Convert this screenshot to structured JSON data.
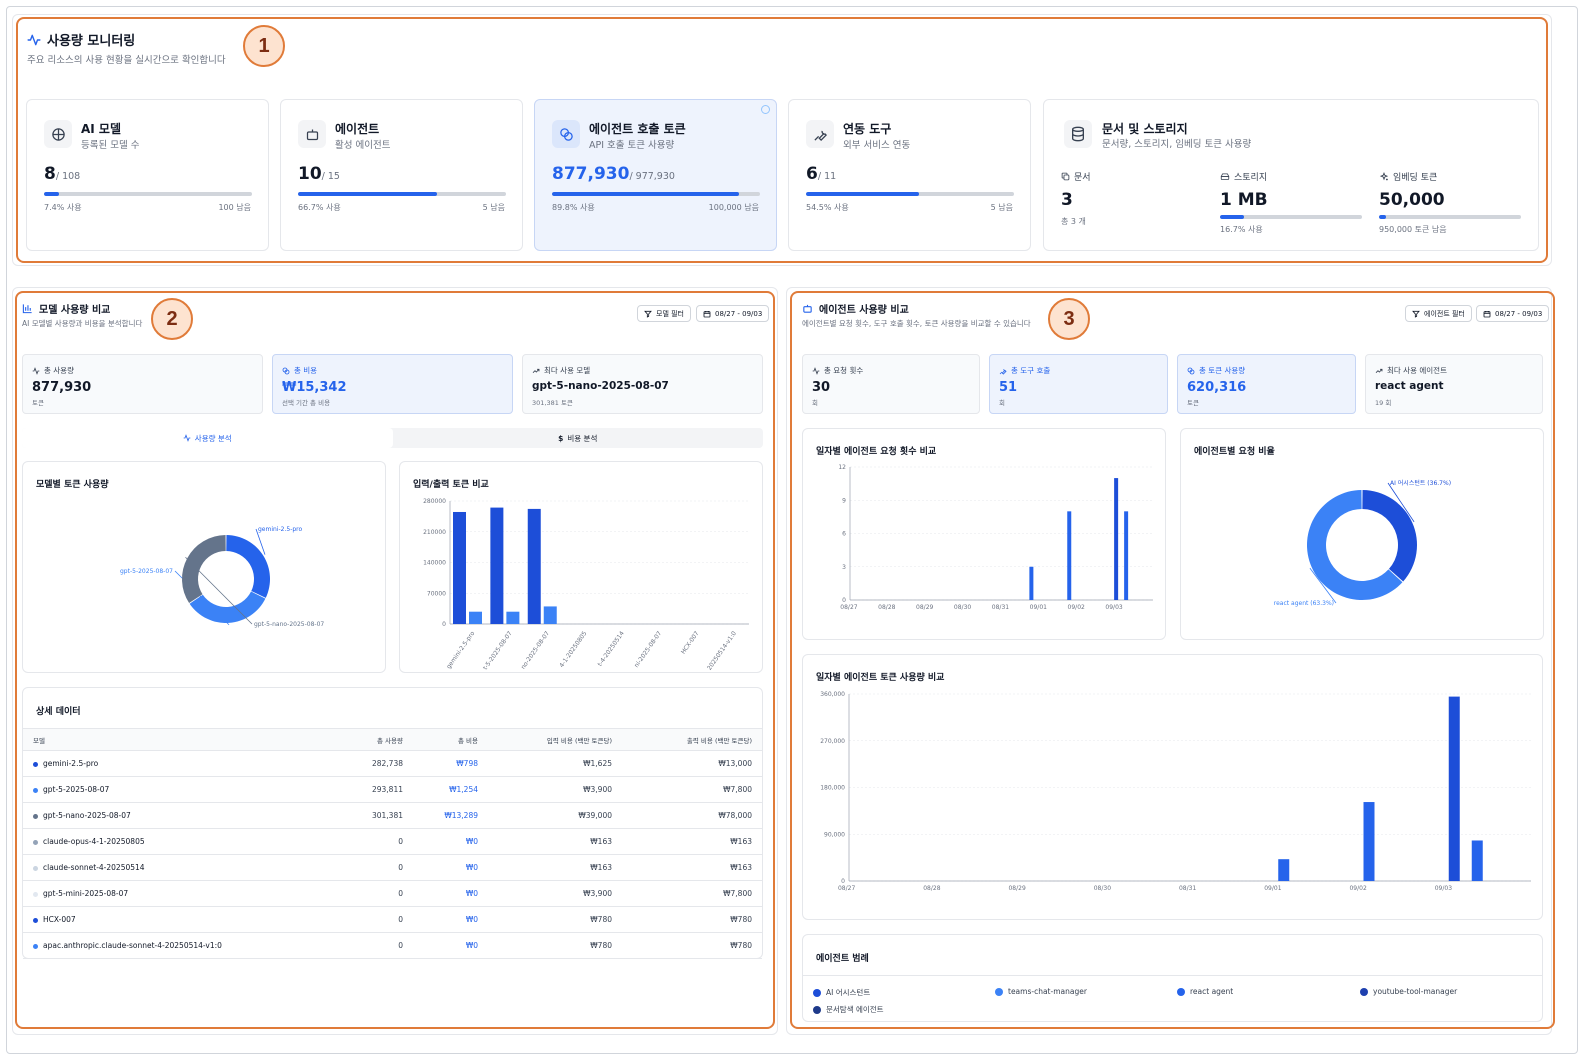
{
  "colors": {
    "primary": "#2563eb",
    "highlight": "#e07b39",
    "gray": "#64748b"
  },
  "markers": [
    "1",
    "2",
    "3"
  ],
  "monitor": {
    "title": "사용량 모니터링",
    "subtitle": "주요 리소스의 사용 현황을 실시간으로 확인합니다",
    "cards": [
      {
        "title": "AI 모델",
        "sub": "등록된 모델 수",
        "value": "8",
        "total": "/ 108",
        "used": "7.4% 사용",
        "remain": "100 남음",
        "progress": 0.074,
        "icon": "brain-icon"
      },
      {
        "title": "에이전트",
        "sub": "활성 에이전트",
        "value": "10",
        "total": "/ 15",
        "used": "66.7% 사용",
        "remain": "5 남음",
        "progress": 0.667,
        "icon": "bot-icon"
      },
      {
        "title": "에이전트 호출 토큰",
        "sub": "API 호출 토큰 사용량",
        "value": "877,930",
        "total": "/ 977,930",
        "used": "89.8% 사용",
        "remain": "100,000 남음",
        "progress": 0.898,
        "icon": "coins-icon"
      },
      {
        "title": "연동 도구",
        "sub": "외부 서비스 연동",
        "value": "6",
        "total": "/ 11",
        "used": "54.5% 사용",
        "remain": "5 남음",
        "progress": 0.545,
        "icon": "wrench-icon"
      }
    ],
    "storage": {
      "title": "문서 및 스토리지",
      "sub": "문서량, 스토리지, 임베딩 토큰 사용량",
      "docs_label": "문서",
      "docs_value": "3",
      "docs_sub": "총 3 개",
      "storage_label": "스토리지",
      "storage_value": "1 MB",
      "storage_used": "16.7% 사용",
      "storage_progress": 0.167,
      "embed_label": "임베딩 토큰",
      "embed_value": "50,000",
      "embed_remain": "950,000 토큰 남음",
      "embed_progress": 0.05
    }
  },
  "model_panel": {
    "title": "모델 사용량 비교",
    "subtitle": "AI 모델별 사용량과 비용을 분석합니다",
    "filter_label": "모델 필터",
    "date_label": "08/27 - 09/03",
    "stats": [
      {
        "label": "총 사용량",
        "value": "877,930",
        "sub": "토큰"
      },
      {
        "label": "총 비용",
        "value": "₩15,342",
        "sub": "선택 기간 총 비용"
      },
      {
        "label": "최다 사용 모델",
        "value": "gpt-5-nano-2025-08-07",
        "sub": "301,381 토큰"
      }
    ],
    "tabs": [
      "사용량 분석",
      "비용 분석"
    ],
    "donut_title": "모델별 토큰 사용량",
    "bar_title": "입력/출력 토큰 비교",
    "table_title": "상세 데이터",
    "columns": [
      "모델",
      "총 사용량",
      "총 비용",
      "입력 비용 (백만 토큰당)",
      "출력 비용 (백만 토큰당)"
    ],
    "rows": [
      {
        "name": "gemini-2.5-pro",
        "usage": "282,738",
        "cost": "₩798",
        "input": "₩1,625",
        "output": "₩13,000",
        "color": "#1d4ed8"
      },
      {
        "name": "gpt-5-2025-08-07",
        "usage": "293,811",
        "cost": "₩1,254",
        "input": "₩3,900",
        "output": "₩7,800",
        "color": "#3b82f6"
      },
      {
        "name": "gpt-5-nano-2025-08-07",
        "usage": "301,381",
        "cost": "₩13,289",
        "input": "₩39,000",
        "output": "₩78,000",
        "color": "#64748b"
      },
      {
        "name": "claude-opus-4-1-20250805",
        "usage": "0",
        "cost": "₩0",
        "input": "₩163",
        "output": "₩163",
        "color": "#94a3b8"
      },
      {
        "name": "claude-sonnet-4-20250514",
        "usage": "0",
        "cost": "₩0",
        "input": "₩163",
        "output": "₩163",
        "color": "#cbd5e1"
      },
      {
        "name": "gpt-5-mini-2025-08-07",
        "usage": "0",
        "cost": "₩0",
        "input": "₩3,900",
        "output": "₩7,800",
        "color": "#e2e8f0"
      },
      {
        "name": "HCX-007",
        "usage": "0",
        "cost": "₩0",
        "input": "₩780",
        "output": "₩780",
        "color": "#1d4ed8"
      },
      {
        "name": "apac.anthropic.claude-sonnet-4-20250514-v1:0",
        "usage": "0",
        "cost": "₩0",
        "input": "₩780",
        "output": "₩780",
        "color": "#3b82f6"
      }
    ]
  },
  "agent_panel": {
    "title": "에이전트 사용량 비교",
    "subtitle": "에이전트별 요청 횟수, 도구 호출 횟수, 토큰 사용량을 비교할 수 있습니다",
    "filter_label": "에이전트 필터",
    "date_label": "08/27 - 09/03",
    "stats": [
      {
        "label": "총 요청 횟수",
        "value": "30",
        "sub": "회"
      },
      {
        "label": "총 도구 호출",
        "value": "51",
        "sub": "회"
      },
      {
        "label": "총 토큰 사용량",
        "value": "620,316",
        "sub": "토큰"
      },
      {
        "label": "최다 사용 에이전트",
        "value": "react agent",
        "sub": "19 회"
      }
    ],
    "req_title": "일자별 에이전트 요청 횟수 비교",
    "ratio_title": "에이전트별 요청 비율",
    "token_title": "일자별 에이전트 토큰 사용량 비교",
    "legend_title": "에이전트 범례",
    "legend": [
      {
        "name": "AI 어시스턴트",
        "color": "#1d4ed8"
      },
      {
        "name": "teams-chat-manager",
        "color": "#3b82f6"
      },
      {
        "name": "react agent",
        "color": "#2563eb"
      },
      {
        "name": "youtube-tool-manager",
        "color": "#1e40af"
      },
      {
        "name": "문서탐색 에이전트",
        "color": "#1e3a8a"
      }
    ]
  },
  "chart_data": [
    {
      "type": "pie",
      "title": "모델별 토큰 사용량",
      "categories": [
        "gemini-2.5-pro",
        "gpt-5-2025-08-07",
        "gpt-5-nano-2025-08-07"
      ],
      "values": [
        282738,
        293811,
        301381
      ],
      "colors": [
        "#2563eb",
        "#3b82f6",
        "#64748b"
      ]
    },
    {
      "type": "bar",
      "title": "입력/출력 토큰 비교",
      "categories": [
        "gemini-2.5-pro",
        "gpt-5-2025-08-07",
        "gpt-5-nano-2025-08-07",
        "claude-opus-4-1-20250805",
        "claude-sonnet-4-20250514",
        "gpt-5-mini-2025-08-07",
        "HCX-007",
        "apac.anthropic.claude-sonnet-4-20250514-v1:0"
      ],
      "tick_labels": [
        "gemini-2.5-pro",
        "t-5-2025-08-07",
        "no-2025-08-07",
        "4-1-20250805",
        "t-4-20250514",
        "ni-2025-08-07",
        "HCX-007",
        "20250514-v1:0"
      ],
      "series": [
        {
          "values": [
            255000,
            265000,
            262000,
            0,
            0,
            0,
            0,
            0
          ],
          "color": "#1d4ed8"
        },
        {
          "values": [
            28000,
            28000,
            40000,
            0,
            0,
            0,
            0,
            0
          ],
          "color": "#3b82f6"
        }
      ],
      "yticks": [
        0,
        70000,
        140000,
        210000,
        280000
      ],
      "ylim": [
        0,
        280000
      ]
    },
    {
      "type": "bar",
      "title": "일자별 에이전트 요청 횟수 비교",
      "categories": [
        "08/27",
        "08/28",
        "08/29",
        "08/30",
        "08/31",
        "09/01",
        "09/02",
        "09/03"
      ],
      "series": [
        {
          "name": "AI 어시스턴트",
          "values": [
            0,
            0,
            0,
            0,
            0,
            0,
            0,
            11
          ]
        },
        {
          "name": "react agent",
          "values": [
            0,
            0,
            0,
            0,
            0,
            3,
            8,
            8
          ]
        }
      ],
      "yticks": [
        0,
        3,
        6,
        9,
        12
      ],
      "ylim": [
        0,
        12
      ]
    },
    {
      "type": "pie",
      "title": "에이전트별 요청 비율",
      "categories": [
        "AI 어시스턴트 (36.7%)",
        "react agent (63.3%)"
      ],
      "values": [
        36.7,
        63.3
      ],
      "colors": [
        "#1d4ed8",
        "#3b82f6"
      ]
    },
    {
      "type": "bar",
      "title": "일자별 에이전트 토큰 사용량 비교",
      "categories": [
        "08/27",
        "08/28",
        "08/29",
        "08/30",
        "08/31",
        "09/01",
        "09/02",
        "09/03"
      ],
      "series": [
        {
          "name": "AI 어시스턴트",
          "values": [
            0,
            0,
            0,
            0,
            0,
            0,
            0,
            355000
          ]
        },
        {
          "name": "react agent",
          "values": [
            0,
            0,
            0,
            0,
            0,
            42000,
            152000,
            78000
          ]
        }
      ],
      "yticks": [
        "0",
        "90,000",
        "180,000",
        "270,000",
        "360,000"
      ],
      "ylim": [
        0,
        360000
      ]
    }
  ]
}
